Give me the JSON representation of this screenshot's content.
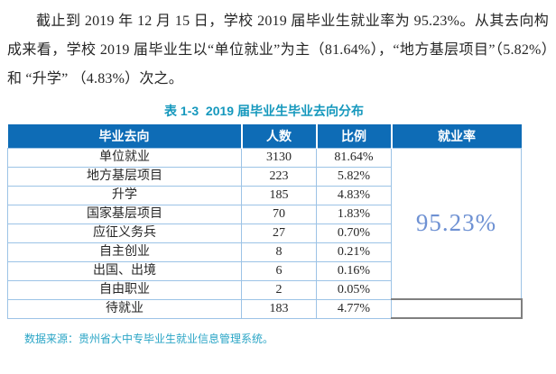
{
  "paragraph": "截止到 2019 年 12 月 15 日，学校 2019 届毕业生就业率为 95.23%。从其去向构成来看，学校 2019 届毕业生以“单位就业”为主（81.64%），“地方基层项目”（5.82%）和 “升学” （4.83%）次之。",
  "table": {
    "title": "表 1-3  2019 届毕业生毕业去向分布",
    "headers": {
      "destination": "毕业去向",
      "count": "人数",
      "ratio": "比例",
      "employment_rate": "就业率"
    },
    "rows": [
      {
        "label": "单位就业",
        "count": "3130",
        "pct": "81.64%"
      },
      {
        "label": "地方基层项目",
        "count": "223",
        "pct": "5.82%"
      },
      {
        "label": "升学",
        "count": "185",
        "pct": "4.83%"
      },
      {
        "label": "国家基层项目",
        "count": "70",
        "pct": "1.83%"
      },
      {
        "label": "应征义务兵",
        "count": "27",
        "pct": "0.70%"
      },
      {
        "label": "自主创业",
        "count": "8",
        "pct": "0.21%"
      },
      {
        "label": "出国、出境",
        "count": "6",
        "pct": "0.16%"
      },
      {
        "label": "自由职业",
        "count": "2",
        "pct": "0.05%"
      },
      {
        "label": "待就业",
        "count": "183",
        "pct": "4.77%"
      }
    ],
    "employment_rate": "95.23%"
  },
  "footer": {
    "source": "数据来源：贵州省大中专毕业生就业信息管理系统。"
  },
  "colors": {
    "header_bg": "#0e6cb6",
    "grid_border": "#9cc3e6",
    "rate_text": "#6e91d3",
    "title_text": "#1598bd",
    "source_text": "#2aa5c6",
    "dark_cell_border": "#7f7f7f"
  }
}
